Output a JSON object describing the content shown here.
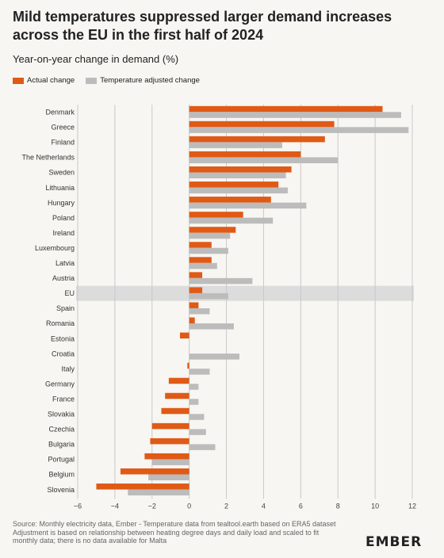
{
  "title": "Mild temperatures suppressed larger demand increases across the EU in the first half of 2024",
  "subtitle": "Year-on-year change in demand (%)",
  "legend": {
    "actual": "Actual change",
    "adjusted": "Temperature adjusted change"
  },
  "colors": {
    "actual": "#e05a16",
    "adjusted": "#bcbcbc",
    "highlight": "#dcdcdc",
    "grid": "#c9c9c9"
  },
  "chart_data": {
    "type": "bar",
    "orientation": "horizontal",
    "categories": [
      "Denmark",
      "Greece",
      "Finland",
      "The Netherlands",
      "Sweden",
      "Lithuania",
      "Hungary",
      "Poland",
      "Ireland",
      "Luxembourg",
      "Latvia",
      "Austria",
      "EU",
      "Spain",
      "Romania",
      "Estonia",
      "Croatia",
      "Italy",
      "Germany",
      "France",
      "Slovakia",
      "Czechia",
      "Bulgaria",
      "Portugal",
      "Belgium",
      "Slovenia"
    ],
    "series": [
      {
        "name": "Actual change",
        "values": [
          10.4,
          7.8,
          7.3,
          6.0,
          5.5,
          4.8,
          4.4,
          2.9,
          2.5,
          1.2,
          1.2,
          0.7,
          0.7,
          0.5,
          0.3,
          -0.5,
          0.0,
          -0.1,
          -1.1,
          -1.3,
          -1.5,
          -2.0,
          -2.1,
          -2.4,
          -3.7,
          -5.0
        ]
      },
      {
        "name": "Temperature adjusted change",
        "values": [
          11.4,
          11.8,
          5.0,
          8.0,
          5.2,
          5.3,
          6.3,
          4.5,
          2.2,
          2.1,
          1.5,
          3.4,
          2.1,
          1.1,
          2.4,
          0.0,
          2.7,
          1.1,
          0.5,
          0.5,
          0.8,
          0.9,
          1.4,
          -2.0,
          -2.2,
          -3.3
        ]
      }
    ],
    "highlight_category": "EU",
    "xlim": [
      -6,
      12
    ],
    "xticks": [
      -6,
      -4,
      -2,
      0,
      2,
      4,
      6,
      8,
      10,
      12
    ],
    "grid": true,
    "legend_position": "top-left"
  },
  "footer": {
    "source": "Source: Monthly electricity data, Ember - Temperature data from tealtool.earth based on ERA5 dataset",
    "note": "Adjustment is based on relationship between heating degree days and daily load and scaled to fit monthly data; there is no data available for Malta"
  },
  "logo": "EMBER"
}
